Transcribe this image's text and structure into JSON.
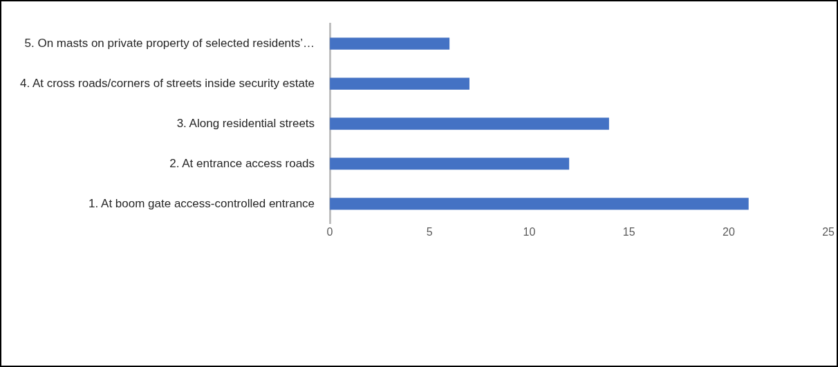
{
  "chart_data": {
    "type": "bar",
    "orientation": "horizontal",
    "categories": [
      "5. On masts on private property of selected residents’…",
      "4. At cross roads/corners of streets inside security estate",
      "3. Along residential streets",
      "2. At entrance access roads",
      "1. At boom gate access-controlled entrance"
    ],
    "values": [
      6,
      7,
      14,
      12,
      21
    ],
    "color": "#4472c4",
    "xlim": [
      0,
      25
    ],
    "xticks": [
      0,
      5,
      10,
      15,
      20,
      25
    ]
  }
}
